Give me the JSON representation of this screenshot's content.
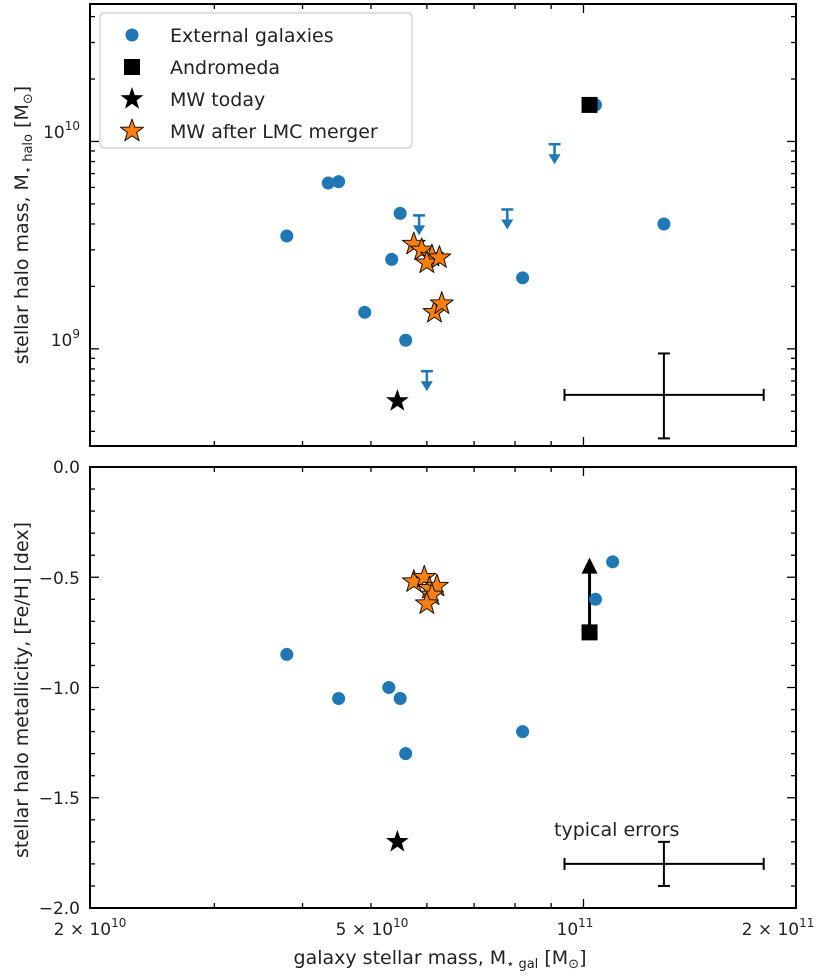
{
  "chart_data": [
    {
      "type": "scatter",
      "panel": "top",
      "ylabel_main": "stellar halo mass, M",
      "ylabel_sub": "⋆ halo",
      "ylabel_unit_open": " [M",
      "ylabel_unit_close": "]",
      "xscale": "log",
      "yscale": "log",
      "xlim": [
        20000000000.0,
        200000000000.0
      ],
      "ylim": [
        340000000.0,
        46000000000.0
      ],
      "ytick_labels": [
        {
          "value": 1000000000.0,
          "base": "10",
          "exp": "9"
        },
        {
          "value": 10000000000.0,
          "base": "10",
          "exp": "10"
        }
      ],
      "legend": {
        "placement": "top-left",
        "entries": [
          {
            "label": "External galaxies",
            "marker": "circle",
            "color": "#1f77b4"
          },
          {
            "label": "Andromeda",
            "marker": "square",
            "color": "#000000"
          },
          {
            "label": "MW today",
            "marker": "star",
            "color": "#000000"
          },
          {
            "label": "MW after LMC merger",
            "marker": "star",
            "color": "#ff7f0e"
          }
        ]
      },
      "series": [
        {
          "name": "External galaxies",
          "marker": "circle",
          "color": "#1f77b4",
          "points": [
            {
              "x": 38000000000.0,
              "y": 3500000000.0
            },
            {
              "x": 43500000000.0,
              "y": 6300000000.0
            },
            {
              "x": 45000000000.0,
              "y": 6400000000.0
            },
            {
              "x": 49000000000.0,
              "y": 1500000000.0
            },
            {
              "x": 53500000000.0,
              "y": 2700000000.0
            },
            {
              "x": 55000000000.0,
              "y": 4500000000.0
            },
            {
              "x": 56000000000.0,
              "y": 1100000000.0
            },
            {
              "x": 82000000000.0,
              "y": 2200000000.0
            },
            {
              "x": 104000000000.0,
              "y": 15000000000.0
            },
            {
              "x": 130000000000.0,
              "y": 4000000000.0
            }
          ]
        },
        {
          "name": "Upper limits",
          "marker": "down-arrow",
          "color": "#1f77b4",
          "points": [
            {
              "x": 58500000000.0,
              "y": 4400000000.0
            },
            {
              "x": 60000000000.0,
              "y": 780000000.0
            },
            {
              "x": 78000000000.0,
              "y": 4700000000.0
            },
            {
              "x": 91000000000.0,
              "y": 9700000000.0
            }
          ]
        },
        {
          "name": "Andromeda",
          "marker": "square",
          "color": "#000000",
          "points": [
            {
              "x": 102000000000.0,
              "y": 15000000000.0
            }
          ]
        },
        {
          "name": "MW today",
          "marker": "star",
          "color": "#000000",
          "points": [
            {
              "x": 54500000000.0,
              "y": 560000000.0
            }
          ]
        },
        {
          "name": "MW after LMC merger",
          "marker": "star",
          "color": "#ff7f0e",
          "points": [
            {
              "x": 57500000000.0,
              "y": 3200000000.0
            },
            {
              "x": 59000000000.0,
              "y": 3000000000.0
            },
            {
              "x": 61000000000.0,
              "y": 2800000000.0
            },
            {
              "x": 60000000000.0,
              "y": 2600000000.0
            },
            {
              "x": 62500000000.0,
              "y": 2750000000.0
            },
            {
              "x": 61500000000.0,
              "y": 1500000000.0
            },
            {
              "x": 63000000000.0,
              "y": 1650000000.0
            }
          ]
        }
      ],
      "typical_error": {
        "x": 130000000000.0,
        "y": 600000000.0,
        "x_low": 94000000000.0,
        "x_high": 180000000000.0,
        "y_low": 370000000.0,
        "y_high": 950000000.0
      }
    },
    {
      "type": "scatter",
      "panel": "bottom",
      "ylabel": "stellar halo metallicity, [Fe/H] [dex]",
      "xlabel_main": "galaxy stellar mass, M",
      "xlabel_sub": "⋆ gal",
      "xlabel_unit_open": " [M",
      "xlabel_unit_close": "]",
      "xscale": "log",
      "yscale": "linear",
      "xlim": [
        20000000000.0,
        200000000000.0
      ],
      "ylim": [
        -2.0,
        0.0
      ],
      "yticks": [
        0.0,
        -0.5,
        -1.0,
        -1.5,
        -2.0
      ],
      "ytick_labels": [
        "0.0",
        "−0.5",
        "−1.0",
        "−1.5",
        "−2.0"
      ],
      "xtick_labels": [
        {
          "value": 20000000000.0,
          "coef": "2 × ",
          "base": "10",
          "exp": "10"
        },
        {
          "value": 50000000000.0,
          "coef": "5 × ",
          "base": "10",
          "exp": "10"
        },
        {
          "value": 100000000000.0,
          "coef": "",
          "base": "10",
          "exp": "11"
        },
        {
          "value": 200000000000.0,
          "coef": "2 × ",
          "base": "10",
          "exp": "11"
        }
      ],
      "series": [
        {
          "name": "External galaxies",
          "marker": "circle",
          "color": "#1f77b4",
          "points": [
            {
              "x": 38000000000.0,
              "y": -0.85
            },
            {
              "x": 45000000000.0,
              "y": -1.05
            },
            {
              "x": 53000000000.0,
              "y": -1.0
            },
            {
              "x": 55000000000.0,
              "y": -1.05
            },
            {
              "x": 56000000000.0,
              "y": -1.3
            },
            {
              "x": 82000000000.0,
              "y": -1.2
            },
            {
              "x": 104000000000.0,
              "y": -0.6
            },
            {
              "x": 110000000000.0,
              "y": -0.43
            }
          ]
        },
        {
          "name": "Andromeda",
          "marker": "square",
          "color": "#000000",
          "points": [
            {
              "x": 102000000000.0,
              "y": -0.75
            }
          ],
          "arrow_to": -0.42
        },
        {
          "name": "MW today",
          "marker": "star",
          "color": "#000000",
          "points": [
            {
              "x": 54500000000.0,
              "y": -1.7
            }
          ]
        },
        {
          "name": "MW after LMC merger",
          "marker": "star",
          "color": "#ff7f0e",
          "points": [
            {
              "x": 57500000000.0,
              "y": -0.52
            },
            {
              "x": 59500000000.0,
              "y": -0.5
            },
            {
              "x": 60500000000.0,
              "y": -0.55
            },
            {
              "x": 62000000000.0,
              "y": -0.54
            },
            {
              "x": 61000000000.0,
              "y": -0.58
            },
            {
              "x": 60000000000.0,
              "y": -0.62
            }
          ]
        }
      ],
      "typical_error": {
        "label": "typical errors",
        "x": 130000000000.0,
        "y": -1.8,
        "x_low": 94000000000.0,
        "x_high": 180000000000.0,
        "y_low": -1.9,
        "y_high": -1.7
      }
    }
  ]
}
